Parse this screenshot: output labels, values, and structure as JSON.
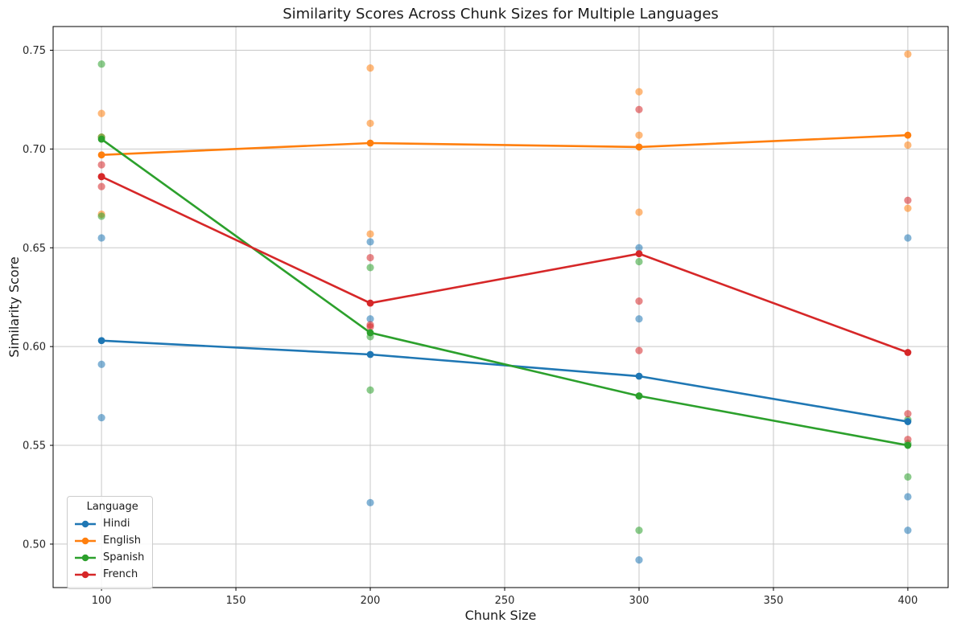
{
  "figure": {
    "title": "Similarity Scores Across Chunk Sizes for Multiple Languages",
    "xlabel": "Chunk Size",
    "ylabel": "Similarity Score"
  },
  "legend": {
    "title": "Language",
    "entries": [
      {
        "label": "Hindi",
        "color": "#1f77b4"
      },
      {
        "label": "English",
        "color": "#ff7f0e"
      },
      {
        "label": "Spanish",
        "color": "#2ca02c"
      },
      {
        "label": "French",
        "color": "#d62728"
      }
    ]
  },
  "chart_data": {
    "type": "line",
    "title": "Similarity Scores Across Chunk Sizes for Multiple Languages",
    "xlabel": "Chunk Size",
    "ylabel": "Similarity Score",
    "x": [
      100,
      200,
      300,
      400
    ],
    "x_ticks": [
      100,
      150,
      200,
      250,
      300,
      350,
      400
    ],
    "y_ticks": [
      0.5,
      0.55,
      0.6,
      0.65,
      0.7,
      0.75
    ],
    "xlim": [
      82,
      415
    ],
    "ylim": [
      0.478,
      0.762
    ],
    "grid": true,
    "legend_position": "lower left",
    "series": [
      {
        "name": "Hindi",
        "color": "#1f77b4",
        "mean_line": [
          0.603,
          0.596,
          0.585,
          0.562
        ],
        "scatter": [
          [
            0.655,
            0.591,
            0.564
          ],
          [
            0.653,
            0.614,
            0.521
          ],
          [
            0.65,
            0.614,
            0.492
          ],
          [
            0.655,
            0.524,
            0.507
          ]
        ]
      },
      {
        "name": "English",
        "color": "#ff7f0e",
        "mean_line": [
          0.697,
          0.703,
          0.701,
          0.707
        ],
        "scatter": [
          [
            0.718,
            0.706,
            0.667
          ],
          [
            0.741,
            0.713,
            0.657
          ],
          [
            0.729,
            0.707,
            0.668
          ],
          [
            0.748,
            0.702,
            0.67
          ]
        ]
      },
      {
        "name": "Spanish",
        "color": "#2ca02c",
        "mean_line": [
          0.705,
          0.607,
          0.575,
          0.55
        ],
        "scatter": [
          [
            0.743,
            0.706,
            0.666
          ],
          [
            0.64,
            0.605,
            0.578
          ],
          [
            0.643,
            0.575,
            0.507
          ],
          [
            0.563,
            0.551,
            0.534
          ]
        ]
      },
      {
        "name": "French",
        "color": "#d62728",
        "mean_line": [
          0.686,
          0.622,
          0.647,
          0.597
        ],
        "scatter": [
          [
            0.692,
            0.686,
            0.681
          ],
          [
            0.645,
            0.611,
            0.61
          ],
          [
            0.72,
            0.623,
            0.598
          ],
          [
            0.674,
            0.566,
            0.553
          ]
        ]
      }
    ],
    "style": {
      "grid_color": "#c8c8c8",
      "spine_color": "#000000",
      "tick_color": "#262626",
      "scatter_alpha": 0.55
    }
  }
}
